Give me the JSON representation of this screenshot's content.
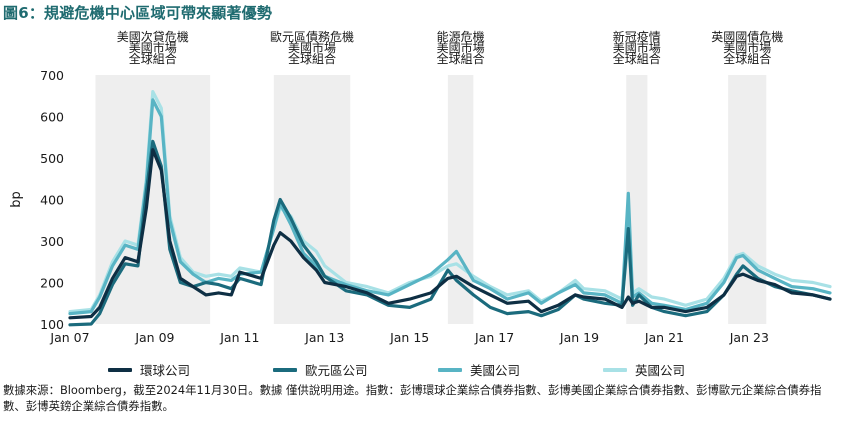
{
  "title": "圖6：規避危機中心區域可帶來顯著優勢",
  "source": "數據來源：Bloomberg，截至2024年11月30日。數據 僅供說明用途。指數：彭博環球企業綜合債券指數、彭博美國企業綜合債券指數、彭博歐元企業綜合債券指數、彭博英鎊企業綜合債券指數。",
  "chart_data": {
    "type": "line",
    "ylabel": "bp",
    "ylim": [
      100,
      700
    ],
    "yticks": [
      100,
      200,
      300,
      400,
      500,
      600,
      700
    ],
    "xlim": [
      2007.0,
      2024.9
    ],
    "xticks": [
      {
        "label": "Jan 07",
        "x": 2007.0
      },
      {
        "label": "Jan 09",
        "x": 2009.0
      },
      {
        "label": "Jan 11",
        "x": 2011.0
      },
      {
        "label": "Jan 13",
        "x": 2013.0
      },
      {
        "label": "Jan 15",
        "x": 2015.0
      },
      {
        "label": "Jan 17",
        "x": 2017.0
      },
      {
        "label": "Jan 19",
        "x": 2019.0
      },
      {
        "label": "Jan 21",
        "x": 2021.0
      },
      {
        "label": "Jan 23",
        "x": 2023.0
      }
    ],
    "crisis_periods": [
      {
        "label": "美國次貸危機\n美國市場\n全球組合",
        "start": 2007.6,
        "end": 2010.3
      },
      {
        "label": "歐元區債務危機\n美國市場\n全球組合",
        "start": 2011.8,
        "end": 2013.6
      },
      {
        "label": "能源危機\n美國市場\n全球組合",
        "start": 2015.9,
        "end": 2016.5
      },
      {
        "label": "新冠疫情\n美國市場\n全球組合",
        "start": 2020.1,
        "end": 2020.6
      },
      {
        "label": "英國國債危機\n美國市場\n全球組合",
        "start": 2022.5,
        "end": 2023.4
      }
    ],
    "x": [
      2007.0,
      2007.5,
      2007.7,
      2008.0,
      2008.3,
      2008.6,
      2008.8,
      2008.95,
      2009.15,
      2009.35,
      2009.6,
      2009.9,
      2010.2,
      2010.5,
      2010.8,
      2011.0,
      2011.5,
      2011.8,
      2011.95,
      2012.2,
      2012.5,
      2012.8,
      2013.0,
      2013.5,
      2014.0,
      2014.5,
      2015.0,
      2015.5,
      2015.9,
      2016.1,
      2016.5,
      2016.9,
      2017.3,
      2017.8,
      2018.1,
      2018.5,
      2018.9,
      2019.1,
      2019.6,
      2020.0,
      2020.15,
      2020.25,
      2020.4,
      2020.7,
      2021.0,
      2021.5,
      2022.0,
      2022.4,
      2022.7,
      2022.85,
      2023.2,
      2023.6,
      2024.0,
      2024.5,
      2024.9
    ],
    "series": [
      {
        "name": "環球公司",
        "color": "#0e2f44",
        "width": 3.2,
        "values": [
          115,
          118,
          140,
          210,
          260,
          250,
          380,
          520,
          470,
          300,
          210,
          190,
          170,
          175,
          170,
          225,
          210,
          290,
          320,
          300,
          260,
          230,
          200,
          190,
          175,
          150,
          160,
          175,
          210,
          215,
          190,
          170,
          150,
          155,
          130,
          145,
          170,
          165,
          160,
          140,
          165,
          150,
          155,
          140,
          140,
          130,
          140,
          170,
          215,
          220,
          205,
          195,
          175,
          170,
          160
        ]
      },
      {
        "name": "歐元區公司",
        "color": "#1b6b7d",
        "width": 3.2,
        "values": [
          98,
          100,
          125,
          195,
          245,
          240,
          420,
          540,
          480,
          280,
          200,
          190,
          200,
          195,
          185,
          210,
          195,
          350,
          400,
          355,
          290,
          250,
          215,
          180,
          170,
          145,
          140,
          160,
          230,
          205,
          170,
          140,
          125,
          130,
          120,
          135,
          170,
          160,
          150,
          145,
          330,
          145,
          170,
          140,
          130,
          120,
          130,
          170,
          220,
          240,
          210,
          190,
          180,
          170,
          160
        ]
      },
      {
        "name": "美國公司",
        "color": "#58b4c4",
        "width": 3.2,
        "values": [
          125,
          130,
          165,
          240,
          290,
          280,
          440,
          640,
          600,
          350,
          250,
          220,
          200,
          210,
          205,
          220,
          225,
          330,
          390,
          340,
          270,
          240,
          215,
          195,
          180,
          170,
          195,
          220,
          255,
          275,
          205,
          185,
          160,
          175,
          150,
          175,
          195,
          175,
          170,
          150,
          415,
          165,
          175,
          150,
          145,
          135,
          150,
          200,
          260,
          265,
          230,
          210,
          190,
          185,
          175
        ]
      },
      {
        "name": "英國公司",
        "color": "#a8e1e6",
        "width": 3.2,
        "values": [
          130,
          135,
          170,
          250,
          300,
          290,
          450,
          660,
          620,
          360,
          260,
          225,
          215,
          220,
          215,
          235,
          225,
          330,
          380,
          360,
          300,
          275,
          240,
          200,
          190,
          175,
          200,
          215,
          240,
          245,
          215,
          190,
          170,
          180,
          155,
          175,
          205,
          185,
          180,
          160,
          300,
          175,
          185,
          165,
          160,
          145,
          160,
          210,
          265,
          270,
          240,
          220,
          205,
          200,
          190
        ]
      }
    ]
  }
}
